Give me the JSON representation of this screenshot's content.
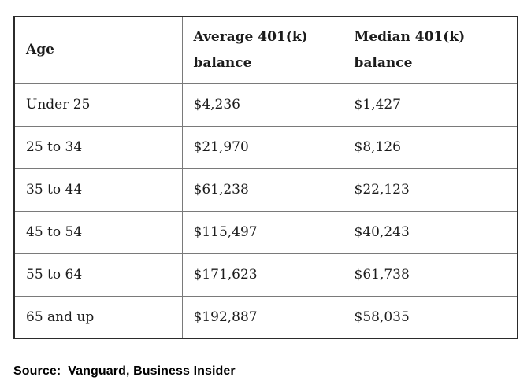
{
  "colors": {
    "outer_border": "#2b2b2b",
    "inner_border": "#7a7a7a",
    "text": "#1c1c1c",
    "background": "#ffffff"
  },
  "table": {
    "headers": {
      "age": "Age",
      "average": "Average 401(k) balance",
      "median": "Median 401(k) balance"
    },
    "rows": [
      {
        "age": "Under 25",
        "average": "$4,236",
        "median": "$1,427"
      },
      {
        "age": "25 to 34",
        "average": "$21,970",
        "median": "$8,126"
      },
      {
        "age": "35 to 44",
        "average": "$61,238",
        "median": "$22,123"
      },
      {
        "age": "45 to 54",
        "average": "$115,497",
        "median": "$40,243"
      },
      {
        "age": "55 to 64",
        "average": "$171,623",
        "median": "$61,738"
      },
      {
        "age": "65 and up",
        "average": "$192,887",
        "median": "$58,035"
      }
    ]
  },
  "source": {
    "label": "Source:",
    "value": "Vanguard, Business Insider"
  },
  "chart_data": {
    "type": "table",
    "columns": [
      "Age",
      "Average 401(k) balance",
      "Median 401(k) balance"
    ],
    "categories": [
      "Under 25",
      "25 to 34",
      "35 to 44",
      "45 to 54",
      "55 to 64",
      "65 and up"
    ],
    "series": [
      {
        "name": "Average 401(k) balance",
        "values": [
          4236,
          21970,
          61238,
          115497,
          171623,
          192887
        ]
      },
      {
        "name": "Median 401(k) balance",
        "values": [
          1427,
          8126,
          22123,
          40243,
          61738,
          58035
        ]
      }
    ],
    "source": "Vanguard, Business Insider"
  }
}
